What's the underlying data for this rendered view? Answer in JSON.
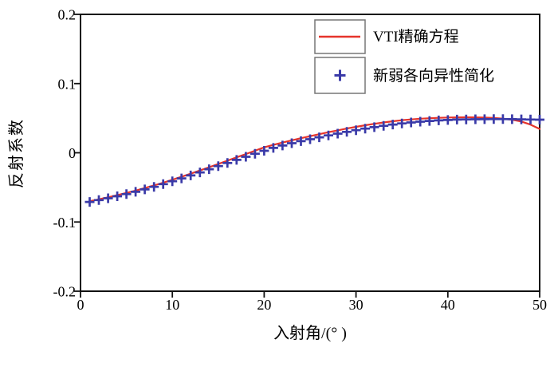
{
  "figure": {
    "background": "#ffffff"
  },
  "colors": {
    "axis": "#111111",
    "text": "#000000",
    "legend_box_border": "#777777",
    "series_exact": "#e6342b",
    "series_approx": "#3a3aa8"
  },
  "chart_data": {
    "type": "line",
    "title": "",
    "xlabel": "入射角/(° )",
    "ylabel": "反射系数",
    "xlim": [
      0,
      50
    ],
    "ylim": [
      -0.2,
      0.2
    ],
    "grid": false,
    "legend_position": "top-right-inside",
    "xticks": [
      {
        "value": 0,
        "label": "0"
      },
      {
        "value": 10,
        "label": "10"
      },
      {
        "value": 20,
        "label": "20"
      },
      {
        "value": 30,
        "label": "30"
      },
      {
        "value": 40,
        "label": "40"
      },
      {
        "value": 50,
        "label": "50"
      }
    ],
    "yticks": [
      {
        "value": 0.2,
        "label": "0.2"
      },
      {
        "value": 0.1,
        "label": "0.1"
      },
      {
        "value": 0,
        "label": "0"
      },
      {
        "value": -0.1,
        "label": "-0.1"
      },
      {
        "value": -0.2,
        "label": "-0.2"
      }
    ],
    "x": [
      1,
      2,
      3,
      4,
      5,
      6,
      7,
      8,
      9,
      10,
      11,
      12,
      13,
      14,
      15,
      16,
      17,
      18,
      19,
      20,
      21,
      22,
      23,
      24,
      25,
      26,
      27,
      28,
      29,
      30,
      31,
      32,
      33,
      34,
      35,
      36,
      37,
      38,
      39,
      40,
      41,
      42,
      43,
      44,
      45,
      46,
      47,
      48,
      49,
      50
    ],
    "series": [
      {
        "name": "VTI精确方程",
        "type": "line",
        "color": "#e6342b",
        "values": [
          -0.07,
          -0.0672,
          -0.0643,
          -0.0612,
          -0.058,
          -0.0546,
          -0.051,
          -0.0472,
          -0.0432,
          -0.039,
          -0.0347,
          -0.0302,
          -0.0256,
          -0.0209,
          -0.0162,
          -0.0114,
          -0.0066,
          -0.0018,
          0.003,
          0.0078,
          0.0114,
          0.0148,
          0.018,
          0.0211,
          0.024,
          0.0269,
          0.0297,
          0.0324,
          0.035,
          0.0375,
          0.0398,
          0.0419,
          0.0438,
          0.0455,
          0.047,
          0.0482,
          0.0492,
          0.0499,
          0.0505,
          0.0509,
          0.0512,
          0.0513,
          0.0512,
          0.0509,
          0.0503,
          0.0493,
          0.0477,
          0.0452,
          0.0407,
          0.0345
        ]
      },
      {
        "name": "新弱各向异性简化",
        "type": "scatter",
        "marker": "plus",
        "color": "#3a3aa8",
        "values": [
          -0.071,
          -0.0684,
          -0.0657,
          -0.0628,
          -0.0597,
          -0.0564,
          -0.0529,
          -0.0492,
          -0.0453,
          -0.0412,
          -0.037,
          -0.0327,
          -0.0283,
          -0.0238,
          -0.0193,
          -0.0148,
          -0.0103,
          -0.0058,
          -0.0014,
          0.0029,
          0.007,
          0.0105,
          0.0138,
          0.0168,
          0.0196,
          0.0224,
          0.0251,
          0.0277,
          0.0302,
          0.0326,
          0.0349,
          0.037,
          0.039,
          0.0408,
          0.0424,
          0.0438,
          0.045,
          0.046,
          0.0468,
          0.0474,
          0.0479,
          0.0482,
          0.0484,
          0.0485,
          0.0486,
          0.0486,
          0.0485,
          0.0483,
          0.0481,
          0.0478
        ]
      }
    ]
  }
}
